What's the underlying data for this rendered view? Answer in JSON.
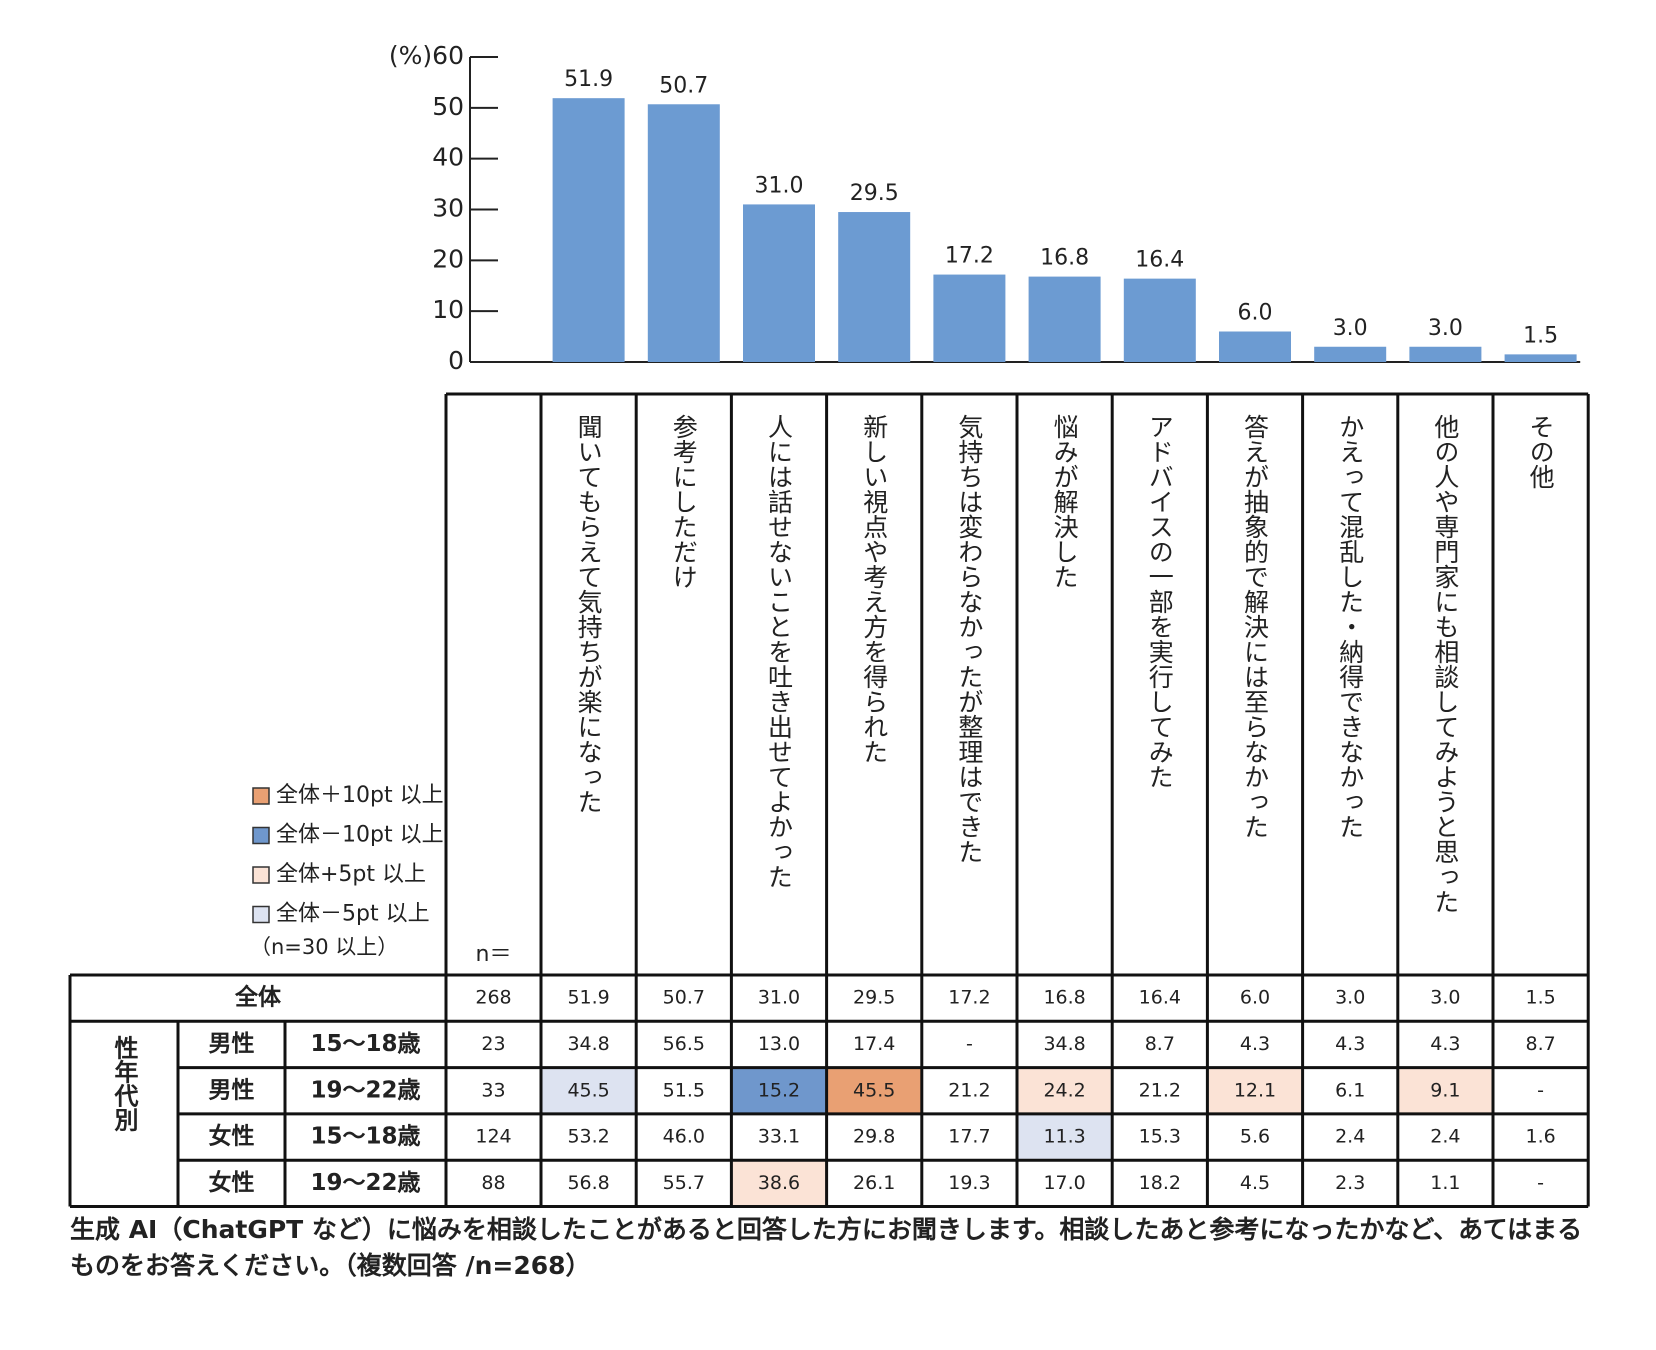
{
  "chart_data": {
    "type": "bar",
    "categories": [
      "聞いてもらえて気持ちが楽になった",
      "参考にしただけ",
      "人には話せないことを吐き出せてよかった",
      "新しい視点や考え方を得られた",
      "気持ちは変わらなかったが整理はできた",
      "悩みが解決した",
      "アドバイスの一部を実行してみた",
      "答えが抽象的で解決には至らなかった",
      "かえって混乱した・納得できなかった",
      "他の人や専門家にも相談してみようと思った",
      "その他"
    ],
    "values": [
      51.9,
      50.7,
      31.0,
      29.5,
      17.2,
      16.8,
      16.4,
      6.0,
      3.0,
      3.0,
      1.5
    ],
    "value_labels": [
      "51.9",
      "50.7",
      "31.0",
      "29.5",
      "17.2",
      "16.8",
      "16.4",
      "6.0",
      "3.0",
      "3.0",
      "1.5"
    ],
    "color": "#6c9bd2",
    "ylim": [
      0,
      60
    ],
    "yticks": [
      0,
      10,
      20,
      30,
      40,
      50,
      {
        "value": 60,
        "label": "(%)60"
      }
    ]
  },
  "legend": [
    {
      "label": "全体＋10pt 以上",
      "color": "#e9a073"
    },
    {
      "label": "全体－10pt 以上",
      "color": "#6f97cc"
    },
    {
      "label": "全体+5pt 以上",
      "color": "#fbe3d6"
    },
    {
      "label": "全体－5pt 以上",
      "color": "#dde3f1"
    }
  ],
  "legend_note": "（n=30 以上）",
  "table": {
    "n_header": "n＝",
    "group_label": "性年代別",
    "rows": [
      {
        "label": "全体",
        "n": "268",
        "values": [
          "51.9",
          "50.7",
          "31.0",
          "29.5",
          "17.2",
          "16.8",
          "16.4",
          "6.0",
          "3.0",
          "3.0",
          "1.5"
        ],
        "highlights": [
          null,
          null,
          null,
          null,
          null,
          null,
          null,
          null,
          null,
          null,
          null
        ]
      },
      {
        "gender": "男性",
        "age": "15〜18歳",
        "n": "23",
        "values": [
          "34.8",
          "56.5",
          "13.0",
          "17.4",
          "-",
          "34.8",
          "8.7",
          "4.3",
          "4.3",
          "4.3",
          "8.7"
        ],
        "highlights": [
          null,
          null,
          null,
          null,
          null,
          null,
          null,
          null,
          null,
          null,
          null
        ]
      },
      {
        "gender": "男性",
        "age": "19〜22歳",
        "n": "33",
        "values": [
          "45.5",
          "51.5",
          "15.2",
          "45.5",
          "21.2",
          "24.2",
          "21.2",
          "12.1",
          "6.1",
          "9.1",
          "-"
        ],
        "highlights": [
          3,
          null,
          1,
          0,
          null,
          2,
          null,
          2,
          null,
          2,
          null
        ]
      },
      {
        "gender": "女性",
        "age": "15〜18歳",
        "n": "124",
        "values": [
          "53.2",
          "46.0",
          "33.1",
          "29.8",
          "17.7",
          "11.3",
          "15.3",
          "5.6",
          "2.4",
          "2.4",
          "1.6"
        ],
        "highlights": [
          null,
          null,
          null,
          null,
          null,
          3,
          null,
          null,
          null,
          null,
          null
        ]
      },
      {
        "gender": "女性",
        "age": "19〜22歳",
        "n": "88",
        "values": [
          "56.8",
          "55.7",
          "38.6",
          "26.1",
          "19.3",
          "17.0",
          "18.2",
          "4.5",
          "2.3",
          "1.1",
          "-"
        ],
        "highlights": [
          null,
          null,
          2,
          null,
          null,
          null,
          null,
          null,
          null,
          null,
          null
        ]
      }
    ]
  },
  "footnote": "生成 AI（ChatGPT など）に悩みを相談したことがあると回答した方にお聞きします。相談したあと参考になったかなど、あてはまるものをお答えください。（複数回答 /n=268）"
}
